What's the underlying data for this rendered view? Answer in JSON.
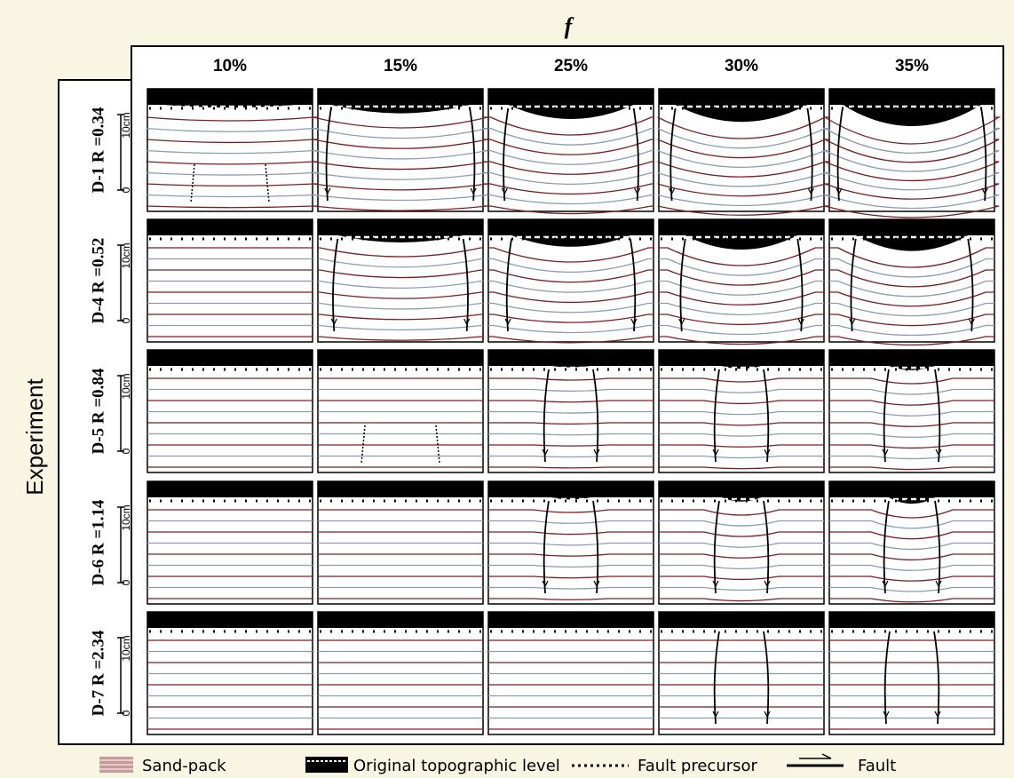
{
  "header": {
    "symbol": "f",
    "columns": [
      "10%",
      "15%",
      "25%",
      "30%",
      "35%"
    ]
  },
  "side_label": "Experiment",
  "rows": [
    {
      "label": "D-1 R =0.34",
      "scale_top": "10cm",
      "scale_bottom": "0"
    },
    {
      "label": "D-4 R =0.52",
      "scale_top": "10cm",
      "scale_bottom": "0"
    },
    {
      "label": "D-5 R =0.84",
      "scale_top": "10cm",
      "scale_bottom": "0"
    },
    {
      "label": "D-6 R =1.14",
      "scale_top": "10cm",
      "scale_bottom": "0"
    },
    {
      "label": "D-7 R =2.34",
      "scale_top": "10cm",
      "scale_bottom": "0"
    }
  ],
  "legend": [
    "Sand-pack",
    "Original topographic level",
    "Fault precursor",
    "Fault"
  ]
}
